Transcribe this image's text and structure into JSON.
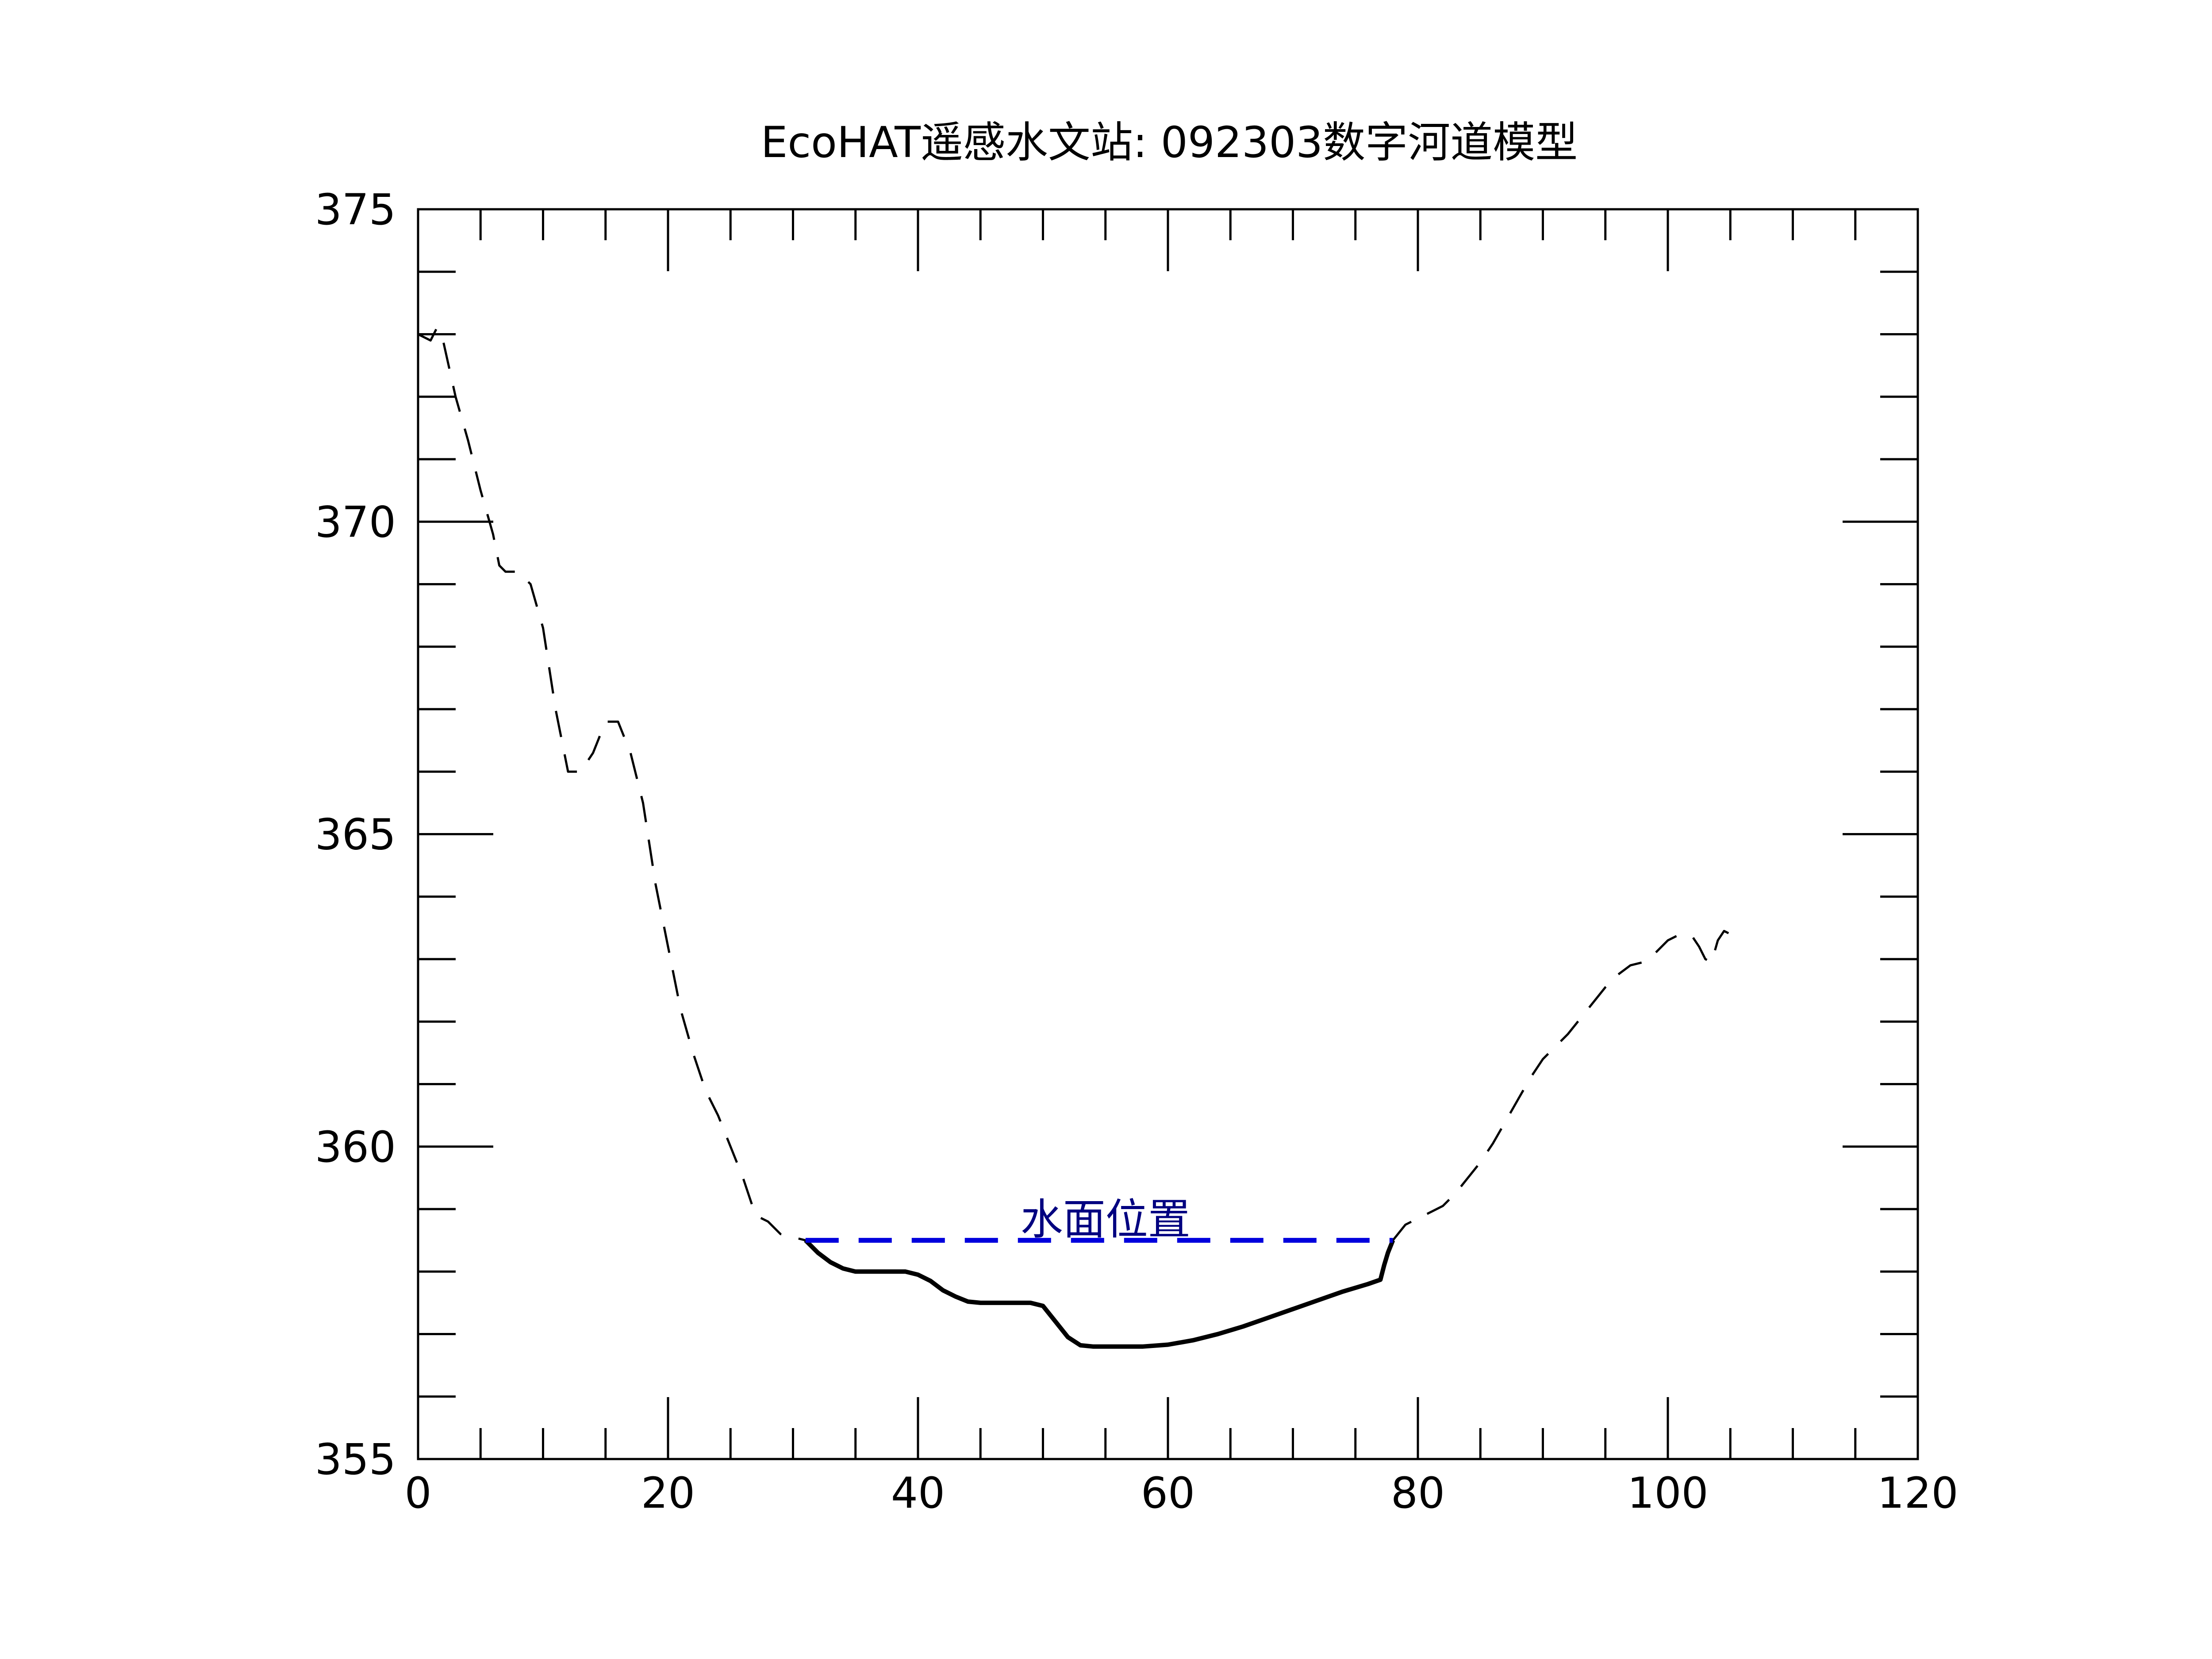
{
  "chart_data": {
    "type": "line",
    "title": "EcoHAT遥感水文站: 092303数字河道模型",
    "xlabel": "",
    "ylabel": "",
    "xlim": [
      0,
      120
    ],
    "ylim": [
      355,
      375
    ],
    "x_ticks": [
      0,
      20,
      40,
      60,
      80,
      100,
      120
    ],
    "x_tick_labels": [
      "0",
      "20",
      "40",
      "60",
      "80",
      "100",
      "120"
    ],
    "y_ticks": [
      355,
      360,
      365,
      370,
      375
    ],
    "y_tick_labels": [
      "355",
      "360",
      "365",
      "370",
      "375"
    ],
    "x_minor_step": 5,
    "y_minor_step": 1,
    "grid": false,
    "colors": {
      "bank": "#000000",
      "channel": "#000000",
      "water_line": "#0000dd",
      "annotation": "#000080"
    },
    "series": [
      {
        "name": "bank_left",
        "style": "dashed",
        "points": [
          [
            0,
            373.0
          ],
          [
            1,
            372.9
          ],
          [
            1.5,
            373.1
          ],
          [
            2,
            372.9
          ],
          [
            3,
            372.0
          ],
          [
            4,
            371.3
          ],
          [
            5,
            370.5
          ],
          [
            6,
            369.8
          ],
          [
            6.5,
            369.3
          ],
          [
            7,
            369.2
          ],
          [
            8,
            369.2
          ],
          [
            9,
            369.0
          ],
          [
            10,
            368.3
          ],
          [
            11,
            367.0
          ],
          [
            12,
            366.0
          ],
          [
            13,
            366.0
          ],
          [
            14,
            366.3
          ],
          [
            15,
            366.8
          ],
          [
            16,
            366.8
          ],
          [
            17,
            366.3
          ],
          [
            18,
            365.5
          ],
          [
            19,
            364.2
          ],
          [
            20,
            363.2
          ],
          [
            21,
            362.2
          ],
          [
            22,
            361.5
          ],
          [
            23,
            360.9
          ],
          [
            24,
            360.5
          ],
          [
            25,
            360.0
          ],
          [
            26,
            359.5
          ],
          [
            27,
            358.9
          ],
          [
            28,
            358.8
          ],
          [
            29,
            358.6
          ],
          [
            31,
            358.5
          ]
        ]
      },
      {
        "name": "channel_bed",
        "style": "solid",
        "points": [
          [
            31,
            358.5
          ],
          [
            32,
            358.3
          ],
          [
            33,
            358.15
          ],
          [
            34,
            358.05
          ],
          [
            35,
            358.0
          ],
          [
            36,
            358.0
          ],
          [
            38,
            358.0
          ],
          [
            39,
            358.0
          ],
          [
            40,
            357.95
          ],
          [
            41,
            357.85
          ],
          [
            42,
            357.7
          ],
          [
            43,
            357.6
          ],
          [
            44,
            357.52
          ],
          [
            45,
            357.5
          ],
          [
            47,
            357.5
          ],
          [
            49,
            357.5
          ],
          [
            50,
            357.45
          ],
          [
            51,
            357.2
          ],
          [
            52,
            356.95
          ],
          [
            53,
            356.82
          ],
          [
            54,
            356.8
          ],
          [
            56,
            356.8
          ],
          [
            58,
            356.8
          ],
          [
            60,
            356.83
          ],
          [
            62,
            356.9
          ],
          [
            64,
            357.0
          ],
          [
            66,
            357.12
          ],
          [
            68,
            357.26
          ],
          [
            70,
            357.4
          ],
          [
            72,
            357.54
          ],
          [
            74,
            357.68
          ],
          [
            76,
            357.8
          ],
          [
            77,
            357.87
          ],
          [
            77.3,
            358.1
          ],
          [
            77.6,
            358.3
          ],
          [
            78,
            358.5
          ]
        ]
      },
      {
        "name": "bank_right",
        "style": "dashed",
        "points": [
          [
            78,
            358.5
          ],
          [
            79,
            358.75
          ],
          [
            80,
            358.85
          ],
          [
            81,
            358.95
          ],
          [
            82,
            359.05
          ],
          [
            83,
            359.25
          ],
          [
            84,
            359.5
          ],
          [
            85,
            359.75
          ],
          [
            86,
            360.05
          ],
          [
            87,
            360.4
          ],
          [
            88,
            360.75
          ],
          [
            89,
            361.1
          ],
          [
            90,
            361.4
          ],
          [
            91,
            361.6
          ],
          [
            92,
            361.8
          ],
          [
            93,
            362.05
          ],
          [
            94,
            362.3
          ],
          [
            95,
            362.55
          ],
          [
            96,
            362.75
          ],
          [
            97,
            362.9
          ],
          [
            98,
            362.95
          ],
          [
            99,
            363.1
          ],
          [
            100,
            363.3
          ],
          [
            101,
            363.4
          ],
          [
            102,
            363.35
          ],
          [
            102.5,
            363.2
          ],
          [
            103,
            363.0
          ],
          [
            103.5,
            362.95
          ],
          [
            104,
            363.3
          ],
          [
            104.5,
            363.45
          ],
          [
            105,
            363.4
          ]
        ]
      },
      {
        "name": "water_surface",
        "style": "dashed",
        "points": [
          [
            31,
            358.5
          ],
          [
            78,
            358.5
          ]
        ]
      }
    ],
    "annotations": [
      {
        "text": "水面位置",
        "x": 55,
        "y": 358.6
      }
    ]
  }
}
